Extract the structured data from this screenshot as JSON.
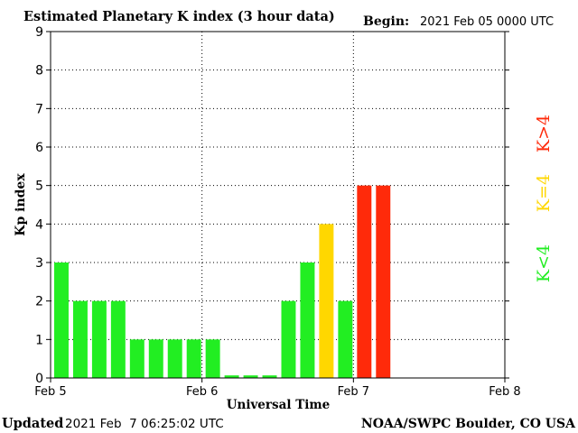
{
  "header": {
    "title": "Estimated Planetary K index (3 hour data)",
    "begin_label": "Begin:",
    "begin_value": "2021 Feb 05 0000 UTC"
  },
  "footer": {
    "updated_label": "Updated",
    "updated_value": "2021 Feb  7 06:25:02 UTC",
    "source": "NOAA/SWPC Boulder, CO USA"
  },
  "legend": {
    "low": "K<4",
    "mid": "K=4",
    "high": "K>4"
  },
  "colors": {
    "low": "#22ee22",
    "mid": "#ffd700",
    "high": "#ff2a0a",
    "axis": "#000000",
    "background": "#ffffff"
  },
  "chart_data": {
    "type": "bar",
    "title": "Estimated Planetary K index (3 hour data)",
    "xlabel": "Universal Time",
    "ylabel": "Kp index",
    "ylim": [
      0,
      9
    ],
    "yticks": [
      "0",
      "1",
      "2",
      "3",
      "4",
      "5",
      "6",
      "7",
      "8",
      "9"
    ],
    "xticks": [
      "Feb 5",
      "Feb 6",
      "Feb 7",
      "Feb 8"
    ],
    "interval_hours": 3,
    "grid": true,
    "legend_placement": "right",
    "values": [
      3,
      2,
      2,
      2,
      1,
      1,
      1,
      1,
      1,
      0.067,
      0.067,
      0.067,
      2,
      3,
      4,
      2,
      5,
      5
    ]
  }
}
